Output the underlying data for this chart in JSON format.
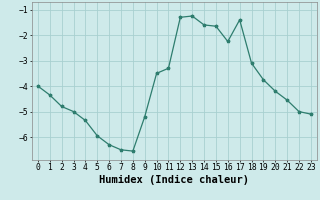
{
  "x": [
    0,
    1,
    2,
    3,
    4,
    5,
    6,
    7,
    8,
    9,
    10,
    11,
    12,
    13,
    14,
    15,
    16,
    17,
    18,
    19,
    20,
    21,
    22,
    23
  ],
  "y": [
    -4.0,
    -4.35,
    -4.8,
    -5.0,
    -5.35,
    -5.95,
    -6.3,
    -6.5,
    -6.55,
    -5.2,
    -3.5,
    -3.3,
    -1.3,
    -1.25,
    -1.6,
    -1.65,
    -2.25,
    -1.4,
    -3.1,
    -3.75,
    -4.2,
    -4.55,
    -5.0,
    -5.1
  ],
  "line_color": "#2e7d6e",
  "marker": "*",
  "marker_size": 2.5,
  "bg_color": "#ceeaea",
  "grid_color": "#a8d0d0",
  "xlabel": "Humidex (Indice chaleur)",
  "ylim": [
    -6.9,
    -0.7
  ],
  "xlim": [
    -0.5,
    23.5
  ],
  "yticks": [
    -6,
    -5,
    -4,
    -3,
    -2,
    -1
  ],
  "xticks": [
    0,
    1,
    2,
    3,
    4,
    5,
    6,
    7,
    8,
    9,
    10,
    11,
    12,
    13,
    14,
    15,
    16,
    17,
    18,
    19,
    20,
    21,
    22,
    23
  ],
  "tick_fontsize": 5.8,
  "xlabel_fontsize": 7.5
}
